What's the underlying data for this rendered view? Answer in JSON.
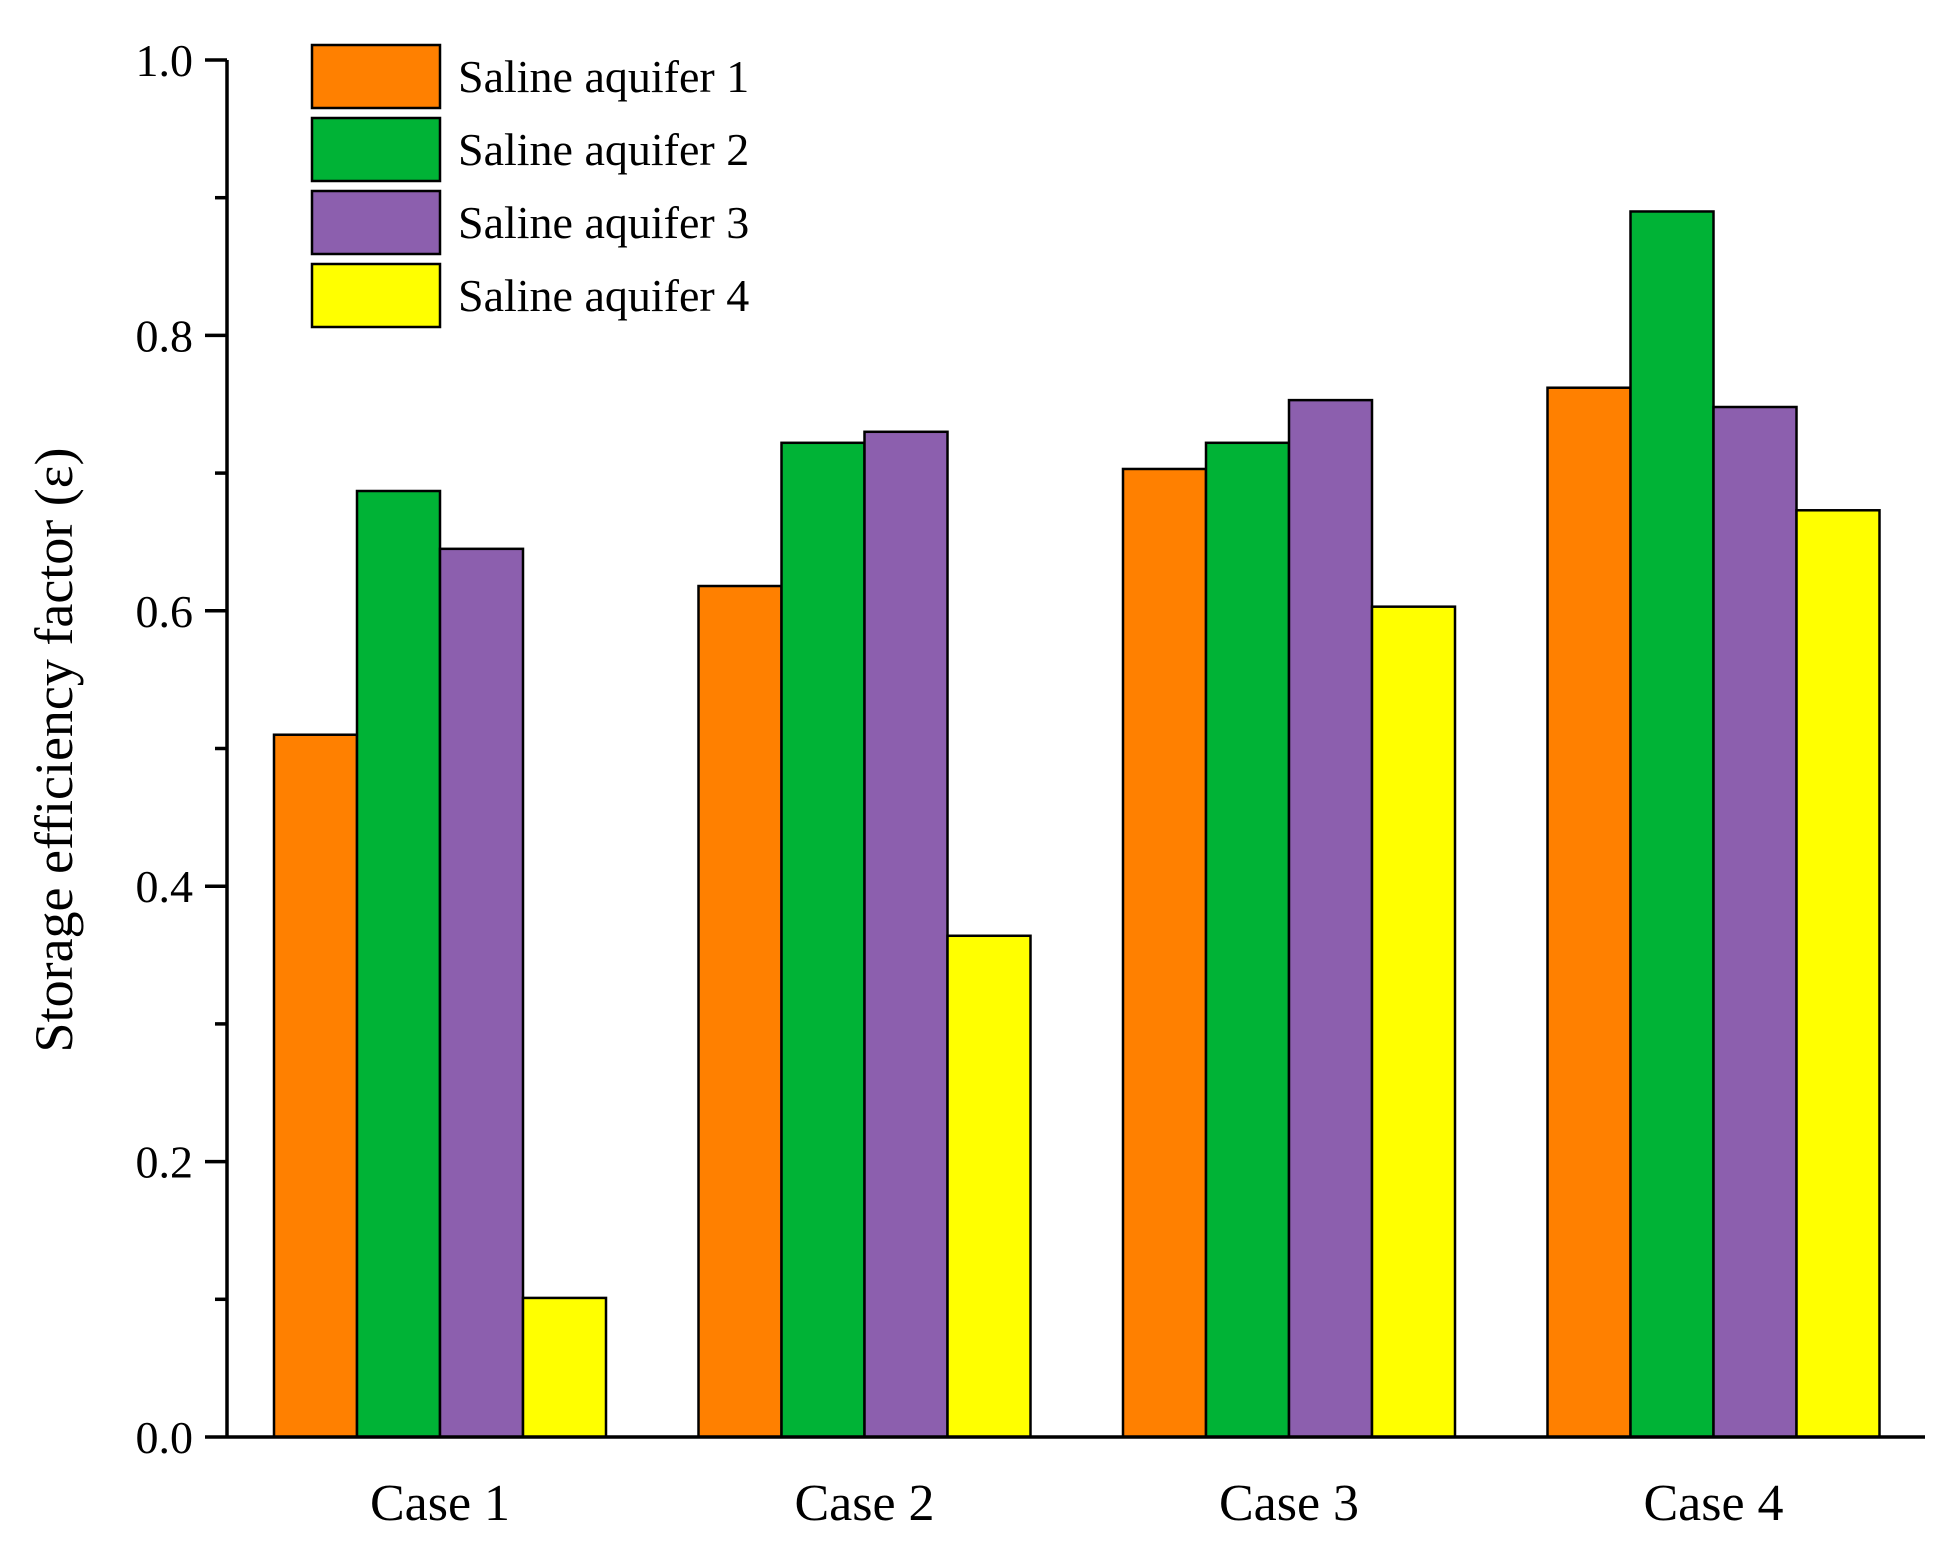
{
  "chart_data": {
    "type": "bar",
    "title": "",
    "xlabel": "",
    "ylabel": "Storage efficiency factor (ε)",
    "ylim": [
      0,
      1.0
    ],
    "yticks": [
      0.0,
      0.2,
      0.4,
      0.6,
      0.8,
      1.0
    ],
    "ytick_labels": [
      "0.0",
      "0.2",
      "0.4",
      "0.6",
      "0.8",
      "1.0"
    ],
    "categories": [
      "Case 1",
      "Case 2",
      "Case 3",
      "Case 4"
    ],
    "series": [
      {
        "name": "Saline aquifer 1",
        "color": "#FF8000",
        "values": [
          0.51,
          0.618,
          0.703,
          0.762
        ]
      },
      {
        "name": "Saline aquifer 2",
        "color": "#00B336",
        "values": [
          0.687,
          0.722,
          0.722,
          0.89
        ]
      },
      {
        "name": "Saline aquifer 3",
        "color": "#8C5FAE",
        "values": [
          0.645,
          0.73,
          0.753,
          0.748
        ]
      },
      {
        "name": "Saline aquifer 4",
        "color": "#FFFF00",
        "values": [
          0.101,
          0.364,
          0.603,
          0.673
        ]
      }
    ],
    "grid": false,
    "legend_position": "top-left"
  }
}
